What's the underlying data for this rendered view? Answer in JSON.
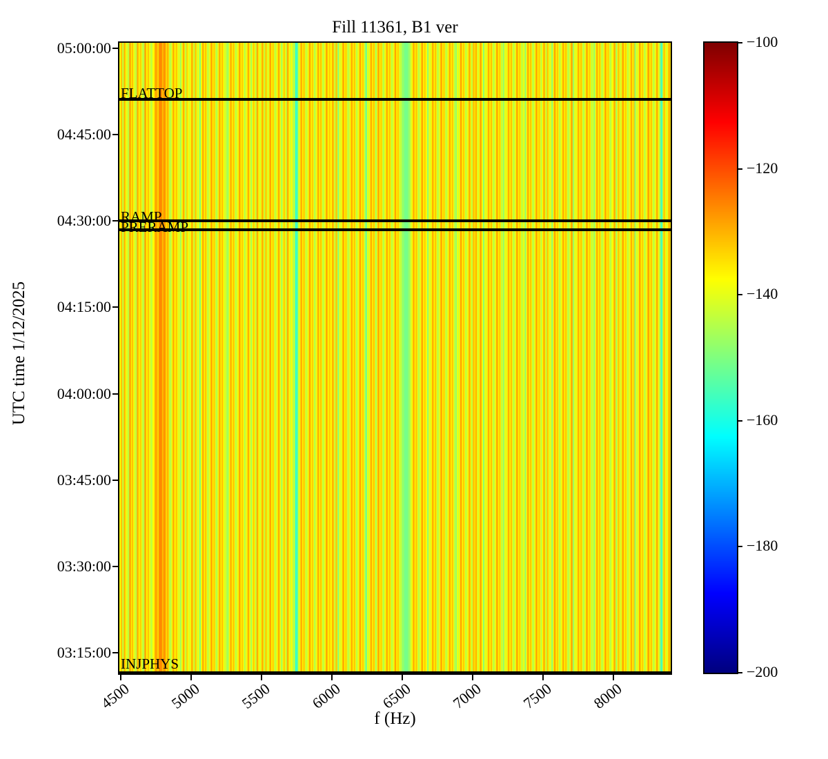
{
  "title": "Fill 11361, B1 ver",
  "xlabel": "f (Hz)",
  "ylabel": "UTC time 1/12/2025",
  "chart_data": {
    "type": "heatmap",
    "title": "Fill 11361, B1 ver",
    "xlabel": "f (Hz)",
    "ylabel": "UTC time 1/12/2025",
    "colormap": "jet",
    "value_range_db": [
      -200,
      -100
    ],
    "background_value_db": -137.5,
    "x_axis": {
      "min_hz": 4490,
      "max_hz": 8405,
      "tick_values": [
        4500,
        5000,
        5500,
        6000,
        6500,
        7000,
        7500,
        8000
      ],
      "tick_labels": [
        "4500",
        "5000",
        "5500",
        "6000",
        "6500",
        "7000",
        "7500",
        "8000"
      ]
    },
    "y_axis": {
      "top_time": "05:00:58",
      "bottom_time": "03:11:24",
      "tick_times": [
        "05:00:00",
        "04:45:00",
        "04:30:00",
        "04:15:00",
        "04:00:00",
        "03:45:00",
        "03:30:00",
        "03:15:00"
      ],
      "tick_labels": [
        "05:00:00",
        "04:45:00",
        "04:30:00",
        "04:15:00",
        "04:00:00",
        "03:45:00",
        "03:30:00",
        "03:15:00"
      ]
    },
    "colorbar": {
      "top_value": -100,
      "bottom_value": -200,
      "tick_values": [
        -100,
        -120,
        -140,
        -160,
        -180,
        -200
      ],
      "tick_labels": [
        "−100",
        "−120",
        "−140",
        "−160",
        "−180",
        "−200"
      ]
    },
    "events": [
      {
        "label": "FLATTOP",
        "time": "04:51:05",
        "label_dy": -20
      },
      {
        "label": "RAMP",
        "time": "04:30:00",
        "label_dy": -17
      },
      {
        "label": "PRERAMP",
        "time": "04:28:28",
        "label_dy": -15
      },
      {
        "label": "INJPHYS",
        "time": "03:11:30",
        "label_dy": -24
      }
    ],
    "line_color": "#000000",
    "stripes_f_w_db": [
      [
        4500,
        10,
        -131
      ],
      [
        4512,
        6,
        -146
      ],
      [
        4522,
        10,
        -129
      ],
      [
        4540,
        8,
        -142
      ],
      [
        4552,
        6,
        -147
      ],
      [
        4560,
        12,
        -128
      ],
      [
        4578,
        10,
        -131
      ],
      [
        4596,
        8,
        -143
      ],
      [
        4606,
        6,
        -146
      ],
      [
        4614,
        12,
        -129
      ],
      [
        4635,
        10,
        -132
      ],
      [
        4650,
        8,
        -144
      ],
      [
        4660,
        6,
        -147
      ],
      [
        4668,
        12,
        -128
      ],
      [
        4690,
        10,
        -131
      ],
      [
        4706,
        8,
        -142
      ],
      [
        4716,
        6,
        -146
      ],
      [
        4740,
        22,
        -129
      ],
      [
        4768,
        28,
        -126
      ],
      [
        4800,
        20,
        -127
      ],
      [
        4826,
        14,
        -130
      ],
      [
        4846,
        6,
        -147
      ],
      [
        4854,
        8,
        -143
      ],
      [
        4868,
        12,
        -129
      ],
      [
        4890,
        10,
        -131
      ],
      [
        4906,
        8,
        -142
      ],
      [
        4920,
        10,
        -148
      ],
      [
        4940,
        12,
        -129
      ],
      [
        4958,
        6,
        -146
      ],
      [
        4966,
        8,
        -132
      ],
      [
        4982,
        10,
        -142
      ],
      [
        5000,
        12,
        -129
      ],
      [
        5018,
        6,
        -146
      ],
      [
        5026,
        10,
        -131
      ],
      [
        5042,
        8,
        -143
      ],
      [
        5058,
        10,
        -151
      ],
      [
        5078,
        12,
        -129
      ],
      [
        5098,
        10,
        -131
      ],
      [
        5114,
        6,
        -146
      ],
      [
        5122,
        8,
        -142
      ],
      [
        5138,
        12,
        -128
      ],
      [
        5158,
        10,
        -132
      ],
      [
        5174,
        6,
        -147
      ],
      [
        5182,
        8,
        -143
      ],
      [
        5196,
        12,
        -129
      ],
      [
        5216,
        10,
        -131
      ],
      [
        5234,
        8,
        -142
      ],
      [
        5246,
        6,
        -146
      ],
      [
        5256,
        10,
        -149
      ],
      [
        5276,
        12,
        -129
      ],
      [
        5296,
        10,
        -131
      ],
      [
        5312,
        6,
        -146
      ],
      [
        5320,
        8,
        -143
      ],
      [
        5338,
        12,
        -128
      ],
      [
        5358,
        10,
        -132
      ],
      [
        5376,
        6,
        -147
      ],
      [
        5384,
        8,
        -142
      ],
      [
        5400,
        12,
        -129
      ],
      [
        5422,
        10,
        -147
      ],
      [
        5440,
        8,
        -131
      ],
      [
        5456,
        6,
        -146
      ],
      [
        5464,
        12,
        -129
      ],
      [
        5484,
        10,
        -142
      ],
      [
        5500,
        12,
        -129
      ],
      [
        5518,
        6,
        -146
      ],
      [
        5526,
        10,
        -131
      ],
      [
        5542,
        8,
        -143
      ],
      [
        5556,
        12,
        -128
      ],
      [
        5576,
        10,
        -132
      ],
      [
        5592,
        6,
        -147
      ],
      [
        5600,
        8,
        -142
      ],
      [
        5616,
        12,
        -129
      ],
      [
        5638,
        10,
        -148
      ],
      [
        5656,
        8,
        -131
      ],
      [
        5672,
        6,
        -146
      ],
      [
        5680,
        12,
        -129
      ],
      [
        5700,
        10,
        -142
      ],
      [
        5720,
        10,
        -146
      ],
      [
        5736,
        22,
        -157
      ],
      [
        5762,
        8,
        -143
      ],
      [
        5776,
        12,
        -129
      ],
      [
        5796,
        10,
        -131
      ],
      [
        5812,
        6,
        -146
      ],
      [
        5820,
        8,
        -142
      ],
      [
        5836,
        12,
        -128
      ],
      [
        5856,
        10,
        -132
      ],
      [
        5872,
        6,
        -147
      ],
      [
        5880,
        8,
        -143
      ],
      [
        5896,
        12,
        -129
      ],
      [
        5916,
        10,
        -131
      ],
      [
        5932,
        6,
        -146
      ],
      [
        5940,
        8,
        -142
      ],
      [
        5956,
        12,
        -128
      ],
      [
        5978,
        10,
        -132
      ],
      [
        6000,
        12,
        -129
      ],
      [
        6018,
        6,
        -146
      ],
      [
        6026,
        10,
        -131
      ],
      [
        6040,
        10,
        -151
      ],
      [
        6058,
        8,
        -142
      ],
      [
        6074,
        12,
        -128
      ],
      [
        6094,
        10,
        -132
      ],
      [
        6110,
        6,
        -147
      ],
      [
        6118,
        8,
        -143
      ],
      [
        6134,
        12,
        -129
      ],
      [
        6154,
        10,
        -131
      ],
      [
        6170,
        6,
        -146
      ],
      [
        6178,
        8,
        -142
      ],
      [
        6194,
        12,
        -128
      ],
      [
        6214,
        10,
        -132
      ],
      [
        6230,
        6,
        -146
      ],
      [
        6238,
        10,
        -154
      ],
      [
        6256,
        8,
        -143
      ],
      [
        6272,
        12,
        -129
      ],
      [
        6292,
        10,
        -131
      ],
      [
        6308,
        8,
        -149
      ],
      [
        6324,
        12,
        -128
      ],
      [
        6344,
        10,
        -132
      ],
      [
        6360,
        6,
        -147
      ],
      [
        6368,
        8,
        -142
      ],
      [
        6384,
        12,
        -129
      ],
      [
        6404,
        10,
        -131
      ],
      [
        6420,
        6,
        -146
      ],
      [
        6428,
        8,
        -143
      ],
      [
        6444,
        12,
        -128
      ],
      [
        6464,
        10,
        -132
      ],
      [
        6480,
        6,
        -146
      ],
      [
        6492,
        64,
        -148
      ],
      [
        6512,
        28,
        -151
      ],
      [
        6558,
        8,
        -142
      ],
      [
        6574,
        12,
        -129
      ],
      [
        6594,
        10,
        -131
      ],
      [
        6610,
        6,
        -146
      ],
      [
        6618,
        8,
        -143
      ],
      [
        6634,
        12,
        -128
      ],
      [
        6654,
        10,
        -132
      ],
      [
        6676,
        10,
        -150
      ],
      [
        6694,
        8,
        -142
      ],
      [
        6710,
        12,
        -129
      ],
      [
        6730,
        10,
        -131
      ],
      [
        6746,
        6,
        -146
      ],
      [
        6754,
        8,
        -143
      ],
      [
        6770,
        12,
        -128
      ],
      [
        6790,
        10,
        -132
      ],
      [
        6806,
        6,
        -147
      ],
      [
        6814,
        8,
        -142
      ],
      [
        6830,
        12,
        -129
      ],
      [
        6850,
        10,
        -131
      ],
      [
        6866,
        6,
        -146
      ],
      [
        6876,
        10,
        -149
      ],
      [
        6894,
        8,
        -143
      ],
      [
        6910,
        12,
        -128
      ],
      [
        6930,
        10,
        -132
      ],
      [
        6946,
        6,
        -146
      ],
      [
        6954,
        8,
        -142
      ],
      [
        6970,
        12,
        -129
      ],
      [
        6990,
        6,
        -146
      ],
      [
        7000,
        12,
        -131
      ],
      [
        7018,
        10,
        -129
      ],
      [
        7034,
        8,
        -143
      ],
      [
        7050,
        12,
        -128
      ],
      [
        7072,
        10,
        -150
      ],
      [
        7090,
        8,
        -142
      ],
      [
        7106,
        12,
        -129
      ],
      [
        7126,
        10,
        -131
      ],
      [
        7142,
        6,
        -146
      ],
      [
        7150,
        8,
        -143
      ],
      [
        7166,
        12,
        -128
      ],
      [
        7186,
        10,
        -132
      ],
      [
        7202,
        6,
        -147
      ],
      [
        7214,
        10,
        -149
      ],
      [
        7232,
        8,
        -142
      ],
      [
        7248,
        12,
        -129
      ],
      [
        7268,
        10,
        -131
      ],
      [
        7284,
        6,
        -146
      ],
      [
        7292,
        8,
        -143
      ],
      [
        7308,
        12,
        -128
      ],
      [
        7328,
        10,
        -132
      ],
      [
        7344,
        6,
        -146
      ],
      [
        7352,
        8,
        -142
      ],
      [
        7368,
        10,
        -150
      ],
      [
        7386,
        12,
        -129
      ],
      [
        7406,
        10,
        -131
      ],
      [
        7422,
        6,
        -146
      ],
      [
        7430,
        8,
        -143
      ],
      [
        7446,
        12,
        -128
      ],
      [
        7466,
        10,
        -132
      ],
      [
        7482,
        6,
        -147
      ],
      [
        7500,
        12,
        -129
      ],
      [
        7518,
        6,
        -146
      ],
      [
        7526,
        10,
        -131
      ],
      [
        7542,
        8,
        -143
      ],
      [
        7558,
        10,
        -150
      ],
      [
        7576,
        12,
        -128
      ],
      [
        7596,
        10,
        -132
      ],
      [
        7612,
        6,
        -146
      ],
      [
        7620,
        8,
        -142
      ],
      [
        7636,
        12,
        -129
      ],
      [
        7656,
        10,
        -131
      ],
      [
        7672,
        6,
        -147
      ],
      [
        7680,
        8,
        -143
      ],
      [
        7696,
        12,
        -128
      ],
      [
        7710,
        10,
        -149
      ],
      [
        7728,
        8,
        -142
      ],
      [
        7744,
        12,
        -129
      ],
      [
        7764,
        10,
        -131
      ],
      [
        7780,
        6,
        -146
      ],
      [
        7788,
        8,
        -143
      ],
      [
        7804,
        12,
        -128
      ],
      [
        7824,
        10,
        -132
      ],
      [
        7840,
        6,
        -146
      ],
      [
        7848,
        8,
        -142
      ],
      [
        7858,
        10,
        -149
      ],
      [
        7876,
        12,
        -129
      ],
      [
        7896,
        10,
        -131
      ],
      [
        7912,
        6,
        -146
      ],
      [
        7920,
        8,
        -143
      ],
      [
        7936,
        12,
        -128
      ],
      [
        7956,
        10,
        -132
      ],
      [
        7972,
        6,
        -147
      ],
      [
        7980,
        8,
        -142
      ],
      [
        8000,
        12,
        -129
      ],
      [
        8016,
        8,
        -149
      ],
      [
        8030,
        10,
        -131
      ],
      [
        8046,
        8,
        -143
      ],
      [
        8060,
        12,
        -128
      ],
      [
        8080,
        10,
        -132
      ],
      [
        8096,
        6,
        -146
      ],
      [
        8104,
        8,
        -142
      ],
      [
        8120,
        12,
        -129
      ],
      [
        8140,
        10,
        -131
      ],
      [
        8148,
        10,
        -149
      ],
      [
        8164,
        8,
        -143
      ],
      [
        8180,
        12,
        -128
      ],
      [
        8200,
        10,
        -132
      ],
      [
        8216,
        6,
        -146
      ],
      [
        8224,
        8,
        -142
      ],
      [
        8240,
        14,
        -128
      ],
      [
        8262,
        10,
        -131
      ],
      [
        8278,
        6,
        -146
      ],
      [
        8286,
        8,
        -143
      ],
      [
        8302,
        12,
        -129
      ],
      [
        8322,
        6,
        -146
      ],
      [
        8332,
        16,
        -156
      ],
      [
        8354,
        10,
        -131
      ],
      [
        8372,
        8,
        -142
      ],
      [
        8388,
        12,
        -129
      ],
      [
        8402,
        4,
        -135
      ]
    ]
  }
}
